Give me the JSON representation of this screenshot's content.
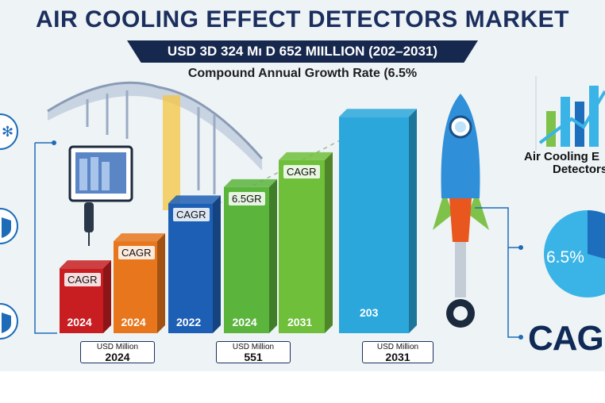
{
  "header": {
    "title": "AIR COOLING EFFECT DETECTORS MARKET",
    "banner": "USD 3D 324 Mı D 652 MIILLION (202–2031)",
    "subtitle": "Compound Annual Growth Rate  (6.5%"
  },
  "side_panel": {
    "label_line1": "Air Cooling E",
    "label_line2": "Detectors",
    "pie_label": "6.5%",
    "cagr_text": "CAGR"
  },
  "colors": {
    "title": "#1b2f5e",
    "banner": "#17284e",
    "bars": [
      "#c81e22",
      "#e8761c",
      "#1d5fb5",
      "#5bb43c",
      "#6fbf3a",
      "#2ba7dc"
    ],
    "rocket": "#2f8fd8",
    "pie_dark": "#1d6fbe",
    "pie_light": "#3ab4e6"
  },
  "icons": [
    "snowflake-icon",
    "shield-icon",
    "shield-icon",
    "building-icon",
    "sensor-icon",
    "rocket-icon",
    "pipe-icon"
  ],
  "chart_data": {
    "type": "bar",
    "categories": [
      "2024",
      "2024",
      "2022",
      "2024",
      "2031",
      "203"
    ],
    "chip_labels": [
      "CAGR",
      "CAGR",
      "CAGR",
      "6.5GR",
      "CAGR",
      ""
    ],
    "values": [
      60,
      85,
      120,
      135,
      160,
      200
    ],
    "ylim": [
      0,
      220
    ],
    "axis_boxes": [
      {
        "unit": "USD Million",
        "year": "2024"
      },
      {
        "unit": "USD Million",
        "year": "551"
      },
      {
        "unit": "USD Million",
        "year": "2031"
      }
    ],
    "title": "",
    "xlabel": "",
    "ylabel": ""
  }
}
